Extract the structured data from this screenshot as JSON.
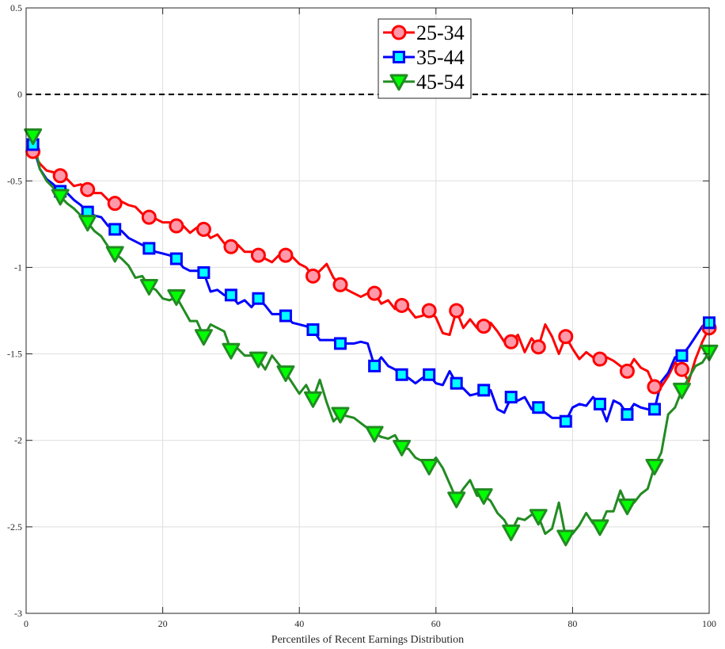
{
  "chart_data": {
    "type": "line",
    "xlabel": "Percentiles of Recent Earnings Distribution",
    "ylabel": "",
    "xlim": [
      0,
      100
    ],
    "ylim": [
      -3,
      0.5
    ],
    "xticks": [
      0,
      20,
      40,
      60,
      80,
      100
    ],
    "yticks": [
      -3,
      -2.5,
      -2,
      -1.5,
      -1,
      -0.5,
      0,
      0.5
    ],
    "xtick_labels": [
      "0",
      "20",
      "40",
      "60",
      "80",
      "100"
    ],
    "ytick_labels": [
      "-3",
      "-2.5",
      "-2",
      "-1.5",
      "-1",
      "-0.5",
      "0",
      "0.5"
    ],
    "grid": true,
    "legend_position": "top-center",
    "reference_line": {
      "y": 0,
      "style": "dashed",
      "color": "#000000"
    },
    "series": [
      {
        "name": "25-34",
        "color": "#ff0000",
        "marker": "circle",
        "marker_fill": "#ff99aa",
        "x": [
          1,
          2,
          3,
          4,
          5,
          6,
          7,
          8,
          9,
          10,
          11,
          12,
          13,
          14,
          15,
          16,
          17,
          18,
          19,
          20,
          21,
          22,
          23,
          24,
          25,
          26,
          27,
          28,
          29,
          30,
          31,
          32,
          33,
          34,
          35,
          36,
          37,
          38,
          39,
          40,
          41,
          42,
          43,
          44,
          45,
          46,
          47,
          48,
          49,
          50,
          51,
          52,
          53,
          54,
          55,
          56,
          57,
          58,
          59,
          60,
          61,
          62,
          63,
          64,
          65,
          66,
          67,
          68,
          69,
          70,
          71,
          72,
          73,
          74,
          75,
          76,
          77,
          78,
          79,
          80,
          81,
          82,
          83,
          84,
          85,
          86,
          87,
          88,
          89,
          90,
          91,
          92,
          93,
          94,
          95,
          96,
          97,
          98,
          99,
          100
        ],
        "y": [
          -0.33,
          -0.4,
          -0.44,
          -0.45,
          -0.47,
          -0.49,
          -0.53,
          -0.52,
          -0.55,
          -0.57,
          -0.57,
          -0.61,
          -0.63,
          -0.62,
          -0.64,
          -0.65,
          -0.69,
          -0.71,
          -0.72,
          -0.74,
          -0.74,
          -0.76,
          -0.76,
          -0.8,
          -0.77,
          -0.78,
          -0.83,
          -0.81,
          -0.86,
          -0.88,
          -0.87,
          -0.91,
          -0.91,
          -0.93,
          -0.95,
          -0.97,
          -0.93,
          -0.93,
          -0.94,
          -0.98,
          -1.0,
          -1.05,
          -1.02,
          -0.98,
          -1.06,
          -1.1,
          -1.13,
          -1.15,
          -1.17,
          -1.15,
          -1.15,
          -1.21,
          -1.19,
          -1.24,
          -1.22,
          -1.24,
          -1.29,
          -1.28,
          -1.25,
          -1.29,
          -1.38,
          -1.39,
          -1.25,
          -1.35,
          -1.3,
          -1.35,
          -1.34,
          -1.32,
          -1.37,
          -1.43,
          -1.43,
          -1.39,
          -1.49,
          -1.41,
          -1.46,
          -1.33,
          -1.4,
          -1.5,
          -1.4,
          -1.47,
          -1.53,
          -1.49,
          -1.52,
          -1.53,
          -1.52,
          -1.54,
          -1.57,
          -1.6,
          -1.53,
          -1.58,
          -1.6,
          -1.69,
          -1.69,
          -1.63,
          -1.55,
          -1.59,
          -1.66,
          -1.53,
          -1.43,
          -1.35
        ],
        "marker_x": [
          1,
          5,
          9,
          13,
          18,
          22,
          26,
          30,
          34,
          38,
          42,
          46,
          51,
          55,
          59,
          63,
          67,
          71,
          75,
          79,
          84,
          88,
          92,
          96,
          100
        ]
      },
      {
        "name": "35-44",
        "color": "#0000ff",
        "marker": "square",
        "marker_fill": "#00ffff",
        "x": [
          1,
          2,
          3,
          4,
          5,
          6,
          7,
          8,
          9,
          10,
          11,
          12,
          13,
          14,
          15,
          16,
          17,
          18,
          19,
          20,
          21,
          22,
          23,
          24,
          25,
          26,
          27,
          28,
          29,
          30,
          31,
          32,
          33,
          34,
          35,
          36,
          37,
          38,
          39,
          40,
          41,
          42,
          43,
          44,
          45,
          46,
          47,
          48,
          49,
          50,
          51,
          52,
          53,
          54,
          55,
          56,
          57,
          58,
          59,
          60,
          61,
          62,
          63,
          64,
          65,
          66,
          67,
          68,
          69,
          70,
          71,
          72,
          73,
          74,
          75,
          76,
          77,
          78,
          79,
          80,
          81,
          82,
          83,
          84,
          85,
          86,
          87,
          88,
          89,
          90,
          91,
          92,
          93,
          94,
          95,
          96,
          97,
          98,
          99,
          100
        ],
        "y": [
          -0.29,
          -0.43,
          -0.49,
          -0.52,
          -0.56,
          -0.57,
          -0.61,
          -0.64,
          -0.68,
          -0.7,
          -0.71,
          -0.76,
          -0.78,
          -0.79,
          -0.83,
          -0.85,
          -0.87,
          -0.89,
          -0.91,
          -0.92,
          -0.93,
          -0.95,
          -1.0,
          -1.02,
          -1.02,
          -1.03,
          -1.14,
          -1.13,
          -1.16,
          -1.16,
          -1.21,
          -1.19,
          -1.23,
          -1.18,
          -1.22,
          -1.27,
          -1.27,
          -1.28,
          -1.32,
          -1.33,
          -1.34,
          -1.36,
          -1.42,
          -1.42,
          -1.42,
          -1.44,
          -1.44,
          -1.44,
          -1.43,
          -1.44,
          -1.57,
          -1.52,
          -1.57,
          -1.59,
          -1.62,
          -1.64,
          -1.67,
          -1.64,
          -1.62,
          -1.67,
          -1.68,
          -1.6,
          -1.67,
          -1.7,
          -1.74,
          -1.73,
          -1.71,
          -1.71,
          -1.82,
          -1.84,
          -1.75,
          -1.77,
          -1.75,
          -1.82,
          -1.81,
          -1.84,
          -1.87,
          -1.87,
          -1.89,
          -1.81,
          -1.79,
          -1.8,
          -1.75,
          -1.79,
          -1.89,
          -1.77,
          -1.79,
          -1.85,
          -1.79,
          -1.81,
          -1.82,
          -1.82,
          -1.66,
          -1.61,
          -1.52,
          -1.51,
          -1.46,
          -1.4,
          -1.34,
          -1.32
        ],
        "marker_x": [
          1,
          5,
          9,
          13,
          18,
          22,
          26,
          30,
          34,
          38,
          42,
          46,
          51,
          55,
          59,
          63,
          67,
          71,
          75,
          79,
          84,
          88,
          92,
          96,
          100
        ]
      },
      {
        "name": "45-54",
        "color": "#228b22",
        "marker": "triangle-down",
        "marker_fill": "#00ff00",
        "x": [
          1,
          2,
          3,
          4,
          5,
          6,
          7,
          8,
          9,
          10,
          11,
          12,
          13,
          14,
          15,
          16,
          17,
          18,
          19,
          20,
          21,
          22,
          23,
          24,
          25,
          26,
          27,
          28,
          29,
          30,
          31,
          32,
          33,
          34,
          35,
          36,
          37,
          38,
          39,
          40,
          41,
          42,
          43,
          44,
          45,
          46,
          47,
          48,
          49,
          50,
          51,
          52,
          53,
          54,
          55,
          56,
          57,
          58,
          59,
          60,
          61,
          62,
          63,
          64,
          65,
          66,
          67,
          68,
          69,
          70,
          71,
          72,
          73,
          74,
          75,
          76,
          77,
          78,
          79,
          80,
          81,
          82,
          83,
          84,
          85,
          86,
          87,
          88,
          89,
          90,
          91,
          92,
          93,
          94,
          95,
          96,
          97,
          98,
          99,
          100
        ],
        "y": [
          -0.24,
          -0.43,
          -0.5,
          -0.54,
          -0.59,
          -0.63,
          -0.66,
          -0.7,
          -0.74,
          -0.79,
          -0.82,
          -0.88,
          -0.92,
          -0.95,
          -0.99,
          -1.06,
          -1.05,
          -1.11,
          -1.13,
          -1.18,
          -1.19,
          -1.17,
          -1.24,
          -1.31,
          -1.31,
          -1.4,
          -1.33,
          -1.35,
          -1.37,
          -1.48,
          -1.47,
          -1.51,
          -1.51,
          -1.53,
          -1.59,
          -1.51,
          -1.56,
          -1.61,
          -1.67,
          -1.73,
          -1.68,
          -1.76,
          -1.65,
          -1.78,
          -1.89,
          -1.85,
          -1.86,
          -1.87,
          -1.9,
          -1.93,
          -1.96,
          -1.98,
          -1.99,
          -1.97,
          -2.04,
          -2.05,
          -2.1,
          -2.12,
          -2.15,
          -2.1,
          -2.16,
          -2.25,
          -2.34,
          -2.28,
          -2.23,
          -2.32,
          -2.32,
          -2.35,
          -2.42,
          -2.46,
          -2.53,
          -2.45,
          -2.46,
          -2.43,
          -2.44,
          -2.54,
          -2.51,
          -2.36,
          -2.56,
          -2.54,
          -2.49,
          -2.42,
          -2.48,
          -2.5,
          -2.41,
          -2.41,
          -2.29,
          -2.38,
          -2.36,
          -2.31,
          -2.28,
          -2.15,
          -2.07,
          -1.85,
          -1.81,
          -1.71,
          -1.64,
          -1.57,
          -1.55,
          -1.49
        ],
        "marker_x": [
          1,
          5,
          9,
          13,
          18,
          22,
          26,
          30,
          34,
          38,
          42,
          46,
          51,
          55,
          59,
          63,
          67,
          71,
          75,
          79,
          84,
          88,
          92,
          96,
          100
        ]
      }
    ]
  }
}
